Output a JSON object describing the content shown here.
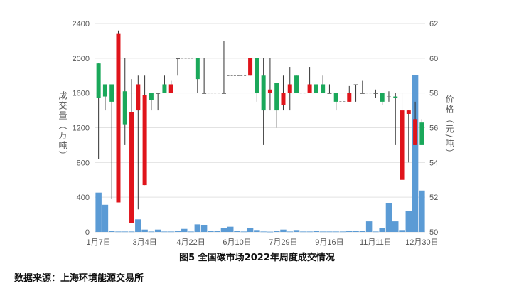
{
  "chart_data": {
    "type": "candlestick+bar",
    "title": "图5 全国碳市场2022年周度成交情况",
    "source": "数据来源：上海环境能源交易所",
    "ylabel_left": "成交量（万吨）",
    "ylabel_right": "价格（元/吨）",
    "ylim_left": [
      0,
      2400
    ],
    "yticks_left": [
      0,
      400,
      800,
      1200,
      1600,
      2000,
      2400
    ],
    "ylim_right": [
      50,
      62
    ],
    "yticks_right": [
      50,
      52,
      54,
      56,
      58,
      60,
      62
    ],
    "grid": true,
    "colors": {
      "up": "#e0141b",
      "down": "#1aa85a",
      "flat": "#666666",
      "volume": "#5b9bd5"
    },
    "x_tick_labels": [
      {
        "week": 0,
        "label": "1月7日"
      },
      {
        "week": 7,
        "label": "3月4日"
      },
      {
        "week": 14,
        "label": "4月22日"
      },
      {
        "week": 21,
        "label": "6月10日"
      },
      {
        "week": 28,
        "label": "7月29日"
      },
      {
        "week": 35,
        "label": "9月16日"
      },
      {
        "week": 42,
        "label": "11月11日"
      },
      {
        "week": 49,
        "label": "12月30日"
      }
    ],
    "candles": [
      [
        59.7,
        59.7,
        54.2,
        57.7
      ],
      [
        58.5,
        58.5,
        57.0,
        57.8
      ],
      [
        58.5,
        58.5,
        51.9,
        57.5
      ],
      [
        51.7,
        61.6,
        51.7,
        61.4
      ],
      [
        58.1,
        60.0,
        55.0,
        56.2
      ],
      [
        50.5,
        58.8,
        50.5,
        56.9
      ],
      [
        57.0,
        59.0,
        51.3,
        58.5
      ],
      [
        52.7,
        59.0,
        52.7,
        57.9
      ],
      [
        58.0,
        58.0,
        57.0,
        57.6
      ],
      [
        58.0,
        58.0,
        57.0,
        58.0
      ],
      [
        58.5,
        59.0,
        58.0,
        58.0
      ],
      [
        58.0,
        58.7,
        58.0,
        58.5
      ],
      [
        60.0,
        60.0,
        59.0,
        60.0
      ],
      [
        60.0,
        60.0,
        60.0,
        60.0
      ],
      [
        60.0,
        60.0,
        60.0,
        60.0
      ],
      [
        60.0,
        60.0,
        58.0,
        58.8
      ],
      [
        58.0,
        60.0,
        58.0,
        58.0
      ],
      [
        58.0,
        58.0,
        58.0,
        58.0
      ],
      [
        58.0,
        58.0,
        58.0,
        58.0
      ],
      [
        58.0,
        61.0,
        58.0,
        58.0
      ],
      [
        59.0,
        59.0,
        59.0,
        59.0
      ],
      [
        59.0,
        59.0,
        59.0,
        59.0
      ],
      [
        59.0,
        59.0,
        59.0,
        59.0
      ],
      [
        59.0,
        60.0,
        59.0,
        60.0
      ],
      [
        60.0,
        60.0,
        57.5,
        58.0
      ],
      [
        59.0,
        60.0,
        55.0,
        57.0
      ],
      [
        58.0,
        60.0,
        57.0,
        58.2
      ],
      [
        58.6,
        58.6,
        56.0,
        57.0
      ],
      [
        57.3,
        59.0,
        57.0,
        58.0
      ],
      [
        58.0,
        59.5,
        57.0,
        58.5
      ],
      [
        59.0,
        59.0,
        58.0,
        58.0
      ],
      [
        58.0,
        58.0,
        58.0,
        58.0
      ],
      [
        58.0,
        59.5,
        58.0,
        58.5
      ],
      [
        58.5,
        58.5,
        58.0,
        58.0
      ],
      [
        58.5,
        59.0,
        58.0,
        58.0
      ],
      [
        58.0,
        58.5,
        58.0,
        58.0
      ],
      [
        58.0,
        58.0,
        57.0,
        57.5
      ],
      [
        57.5,
        57.5,
        57.5,
        57.5
      ],
      [
        57.5,
        58.4,
        57.5,
        58.0
      ],
      [
        58.5,
        58.5,
        57.5,
        58.5
      ],
      [
        58.0,
        58.7,
        58.0,
        58.0
      ],
      [
        58.0,
        58.0,
        58.0,
        58.0
      ],
      [
        58.0,
        58.2,
        57.7,
        58.0
      ],
      [
        58.0,
        58.0,
        57.3,
        57.5
      ],
      [
        57.8,
        58.1,
        57.5,
        57.8
      ],
      [
        57.8,
        58.0,
        55.0,
        57.7
      ],
      [
        53.0,
        58.0,
        53.0,
        57.0
      ],
      [
        56.8,
        57.0,
        54.0,
        57.0
      ],
      [
        55.0,
        57.5,
        55.0,
        56.5
      ],
      [
        56.3,
        56.5,
        55.0,
        55.0
      ]
    ],
    "volume": [
      453,
      313,
      8,
      5,
      5,
      5,
      145,
      27,
      5,
      27,
      5,
      5,
      8,
      35,
      5,
      87,
      82,
      12,
      12,
      49,
      60,
      12,
      5,
      44,
      22,
      5,
      3,
      10,
      27,
      5,
      22,
      5,
      5,
      10,
      5,
      5,
      5,
      5,
      10,
      16,
      16,
      122,
      5,
      49,
      330,
      122,
      22,
      245,
      1808,
      477
    ]
  }
}
